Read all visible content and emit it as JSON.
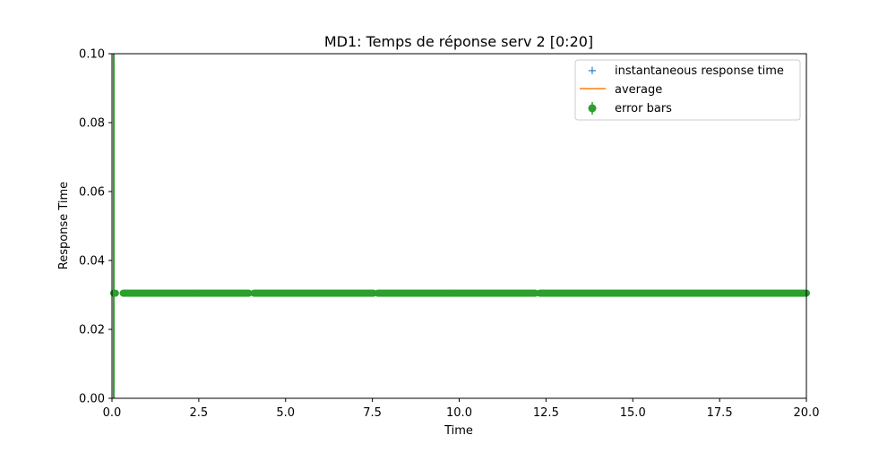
{
  "chart_data": {
    "type": "scatter",
    "title": "MD1: Temps de réponse serv 2 [0:20]",
    "xlabel": "Time",
    "ylabel": "Response Time",
    "xlim": [
      0,
      20
    ],
    "ylim": [
      0,
      0.1
    ],
    "xticks": [
      "0.0",
      "2.5",
      "5.0",
      "7.5",
      "10.0",
      "12.5",
      "15.0",
      "17.5",
      "20.0"
    ],
    "yticks": [
      "0.00",
      "0.02",
      "0.04",
      "0.06",
      "0.08",
      "0.10"
    ],
    "grid": false,
    "legend_position": "upper right",
    "series": [
      {
        "name": "instantaneous response time",
        "marker": "+",
        "color": "#1f77b4",
        "x": [],
        "y": []
      },
      {
        "name": "average",
        "marker": "line",
        "color": "#ff7f0e",
        "x": [],
        "y": []
      },
      {
        "name": "error bars",
        "marker": "o",
        "color": "#2ca02c",
        "y_value": 0.0305,
        "x_range": [
          0.05,
          20
        ],
        "initial_error_bar": {
          "x": 0.05,
          "ymin": 0.0,
          "ymax": 0.1
        },
        "gaps_x": [
          [
            0.1,
            0.3
          ],
          [
            3.95,
            4.08
          ],
          [
            7.55,
            7.65
          ],
          [
            12.2,
            12.3
          ]
        ]
      }
    ]
  }
}
